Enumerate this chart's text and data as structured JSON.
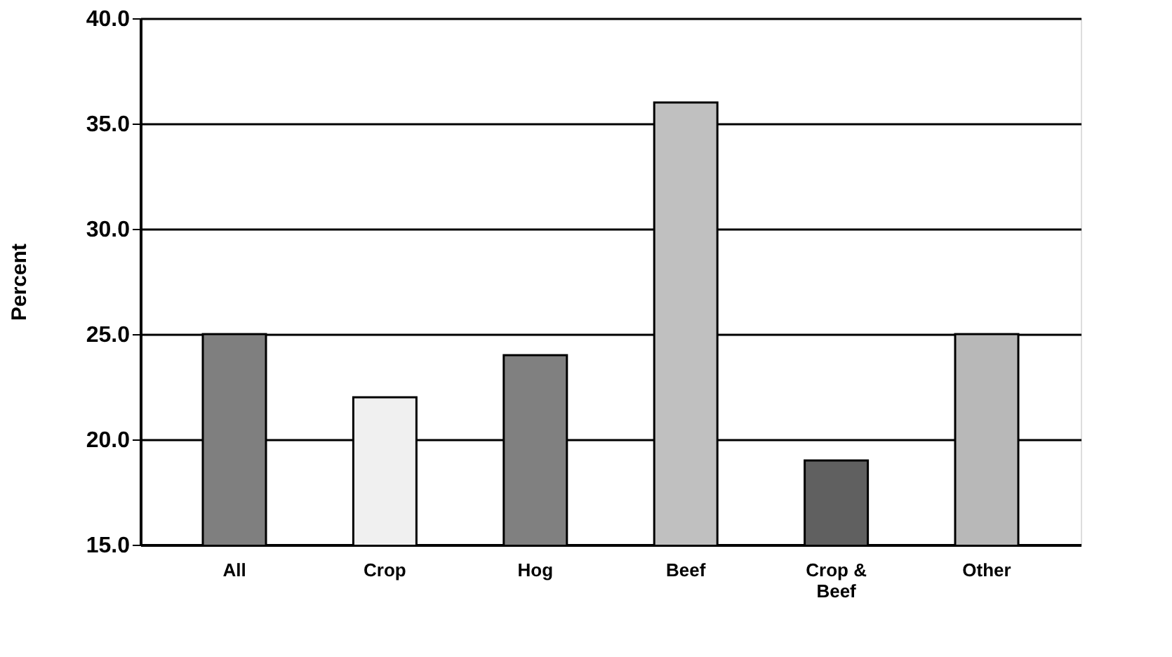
{
  "chart_data": {
    "type": "bar",
    "ylabel": "Percent",
    "categories": [
      "All",
      "Crop",
      "Hog",
      "Beef",
      "Crop & Beef",
      "Other"
    ],
    "values": [
      25,
      22,
      24,
      36,
      19,
      25
    ],
    "colors": [
      "#7f7f7f",
      "#f0f0f0",
      "#808080",
      "#c0c0c0",
      "#606060",
      "#b8b8b8"
    ],
    "ylim": [
      15,
      40
    ],
    "yticks": [
      {
        "value": 15,
        "label": "15.0"
      },
      {
        "value": 20,
        "label": "20.0"
      },
      {
        "value": 25,
        "label": "25.0"
      },
      {
        "value": 30,
        "label": "30.0"
      },
      {
        "value": 35,
        "label": "35.0"
      },
      {
        "value": 40,
        "label": "40.0"
      }
    ],
    "grid": "y",
    "legend": false
  }
}
